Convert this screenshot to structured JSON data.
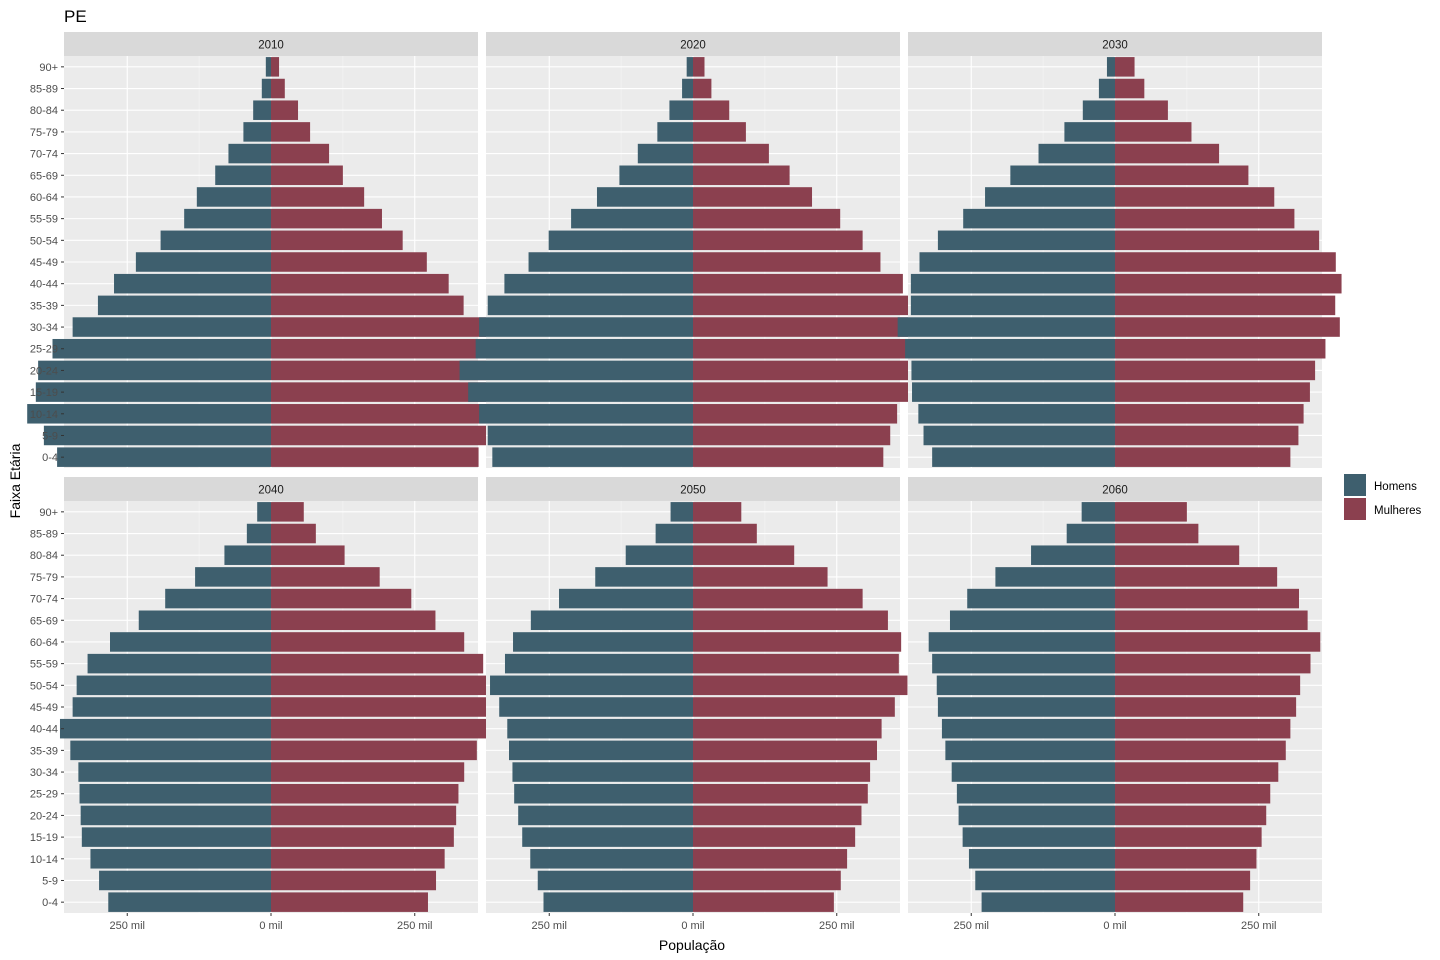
{
  "chart_data": {
    "type": "bar",
    "subtype": "population-pyramid-facets",
    "title": "PE",
    "xlabel": "População",
    "ylabel": "Faixa Etária",
    "xlim": [
      -360,
      360
    ],
    "x_ticks": [
      -250,
      0,
      250
    ],
    "x_tick_labels": [
      "250 mil",
      "0 mil",
      "250 mil"
    ],
    "grid": true,
    "legend_position": "right",
    "categories": [
      "0-4",
      "5-9",
      "10-14",
      "15-19",
      "20-24",
      "25-29",
      "30-34",
      "35-39",
      "40-44",
      "45-49",
      "50-54",
      "55-59",
      "60-64",
      "65-69",
      "70-74",
      "75-79",
      "80-84",
      "85-89",
      "90+"
    ],
    "series_meta": [
      {
        "name": "Homens",
        "color": "#3e5f6e"
      },
      {
        "name": "Mulheres",
        "color": "#8b404f"
      }
    ],
    "facets": [
      {
        "label": "2010",
        "homens": [
          -372,
          -395,
          -424,
          -409,
          -405,
          -380,
          -345,
          -301,
          -273,
          -235,
          -192,
          -151,
          -129,
          -97,
          -74,
          -48,
          -31,
          -16,
          -9
        ],
        "mulheres": [
          361,
          383,
          413,
          408,
          418,
          404,
          374,
          335,
          309,
          271,
          229,
          193,
          162,
          125,
          101,
          68,
          47,
          24,
          14
        ]
      },
      {
        "label": "2020",
        "homens": [
          -349,
          -357,
          -372,
          -391,
          -406,
          -378,
          -372,
          -357,
          -328,
          -286,
          -251,
          -212,
          -167,
          -128,
          -96,
          -62,
          -41,
          -19,
          -11
        ],
        "mulheres": [
          331,
          343,
          355,
          378,
          403,
          389,
          400,
          391,
          365,
          326,
          295,
          256,
          207,
          168,
          132,
          92,
          63,
          32,
          20
        ]
      },
      {
        "label": "2030",
        "homens": [
          -318,
          -333,
          -342,
          -353,
          -354,
          -365,
          -378,
          -355,
          -355,
          -340,
          -308,
          -264,
          -226,
          -182,
          -133,
          -88,
          -56,
          -28,
          -14
        ],
        "mulheres": [
          305,
          319,
          328,
          339,
          348,
          366,
          391,
          383,
          394,
          384,
          355,
          312,
          277,
          232,
          181,
          133,
          92,
          51,
          34
        ]
      },
      {
        "label": "2040",
        "homens": [
          -283,
          -299,
          -314,
          -329,
          -331,
          -333,
          -335,
          -349,
          -367,
          -345,
          -338,
          -319,
          -280,
          -230,
          -184,
          -132,
          -81,
          -42,
          -24
        ],
        "mulheres": [
          273,
          287,
          302,
          318,
          322,
          326,
          336,
          358,
          384,
          375,
          381,
          369,
          336,
          286,
          244,
          189,
          128,
          78,
          57
        ]
      },
      {
        "label": "2050",
        "homens": [
          -260,
          -270,
          -283,
          -297,
          -304,
          -311,
          -314,
          -320,
          -323,
          -337,
          -353,
          -327,
          -313,
          -282,
          -233,
          -170,
          -117,
          -65,
          -39
        ],
        "mulheres": [
          245,
          257,
          268,
          282,
          293,
          304,
          308,
          320,
          328,
          351,
          373,
          358,
          362,
          339,
          295,
          234,
          176,
          111,
          84
        ]
      },
      {
        "label": "2060",
        "homens": [
          -232,
          -243,
          -254,
          -265,
          -272,
          -275,
          -284,
          -295,
          -301,
          -308,
          -310,
          -318,
          -324,
          -287,
          -257,
          -208,
          -146,
          -84,
          -58
        ],
        "mulheres": [
          223,
          235,
          246,
          255,
          263,
          270,
          284,
          297,
          305,
          315,
          322,
          340,
          357,
          335,
          320,
          282,
          216,
          145,
          125
        ]
      }
    ]
  }
}
